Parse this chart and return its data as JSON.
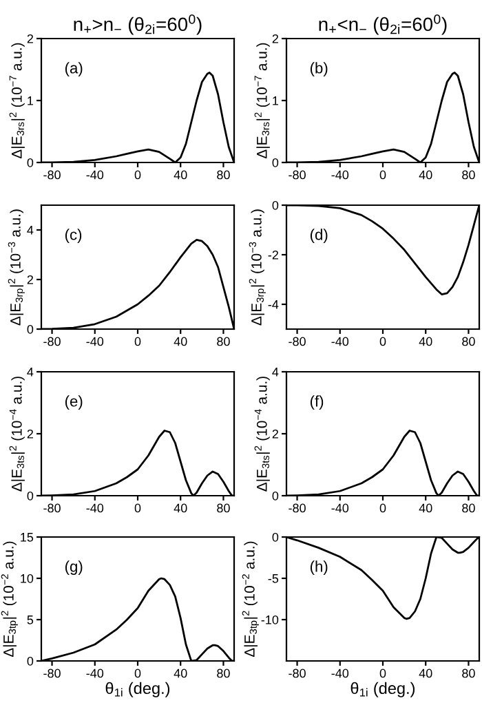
{
  "chart_data": [
    {
      "type": "line",
      "title": "n$_{+}$>n$_{−}$ (θ$_{2i}$=60$^{0}$)",
      "ylabel": "Δ|E$_{3rs}$|$^{2}$ (10$^{−7}$ a.u.)",
      "annotations": [
        "(a)"
      ],
      "x": [
        -90,
        -80,
        -60,
        -40,
        -20,
        -10,
        0,
        10,
        20,
        30,
        35,
        40,
        45,
        50,
        55,
        60,
        65,
        67,
        70,
        75,
        80,
        85,
        90
      ],
      "series": [
        {
          "color": "#000000",
          "values": [
            0,
            0.0,
            0.01,
            0.04,
            0.1,
            0.14,
            0.18,
            0.21,
            0.17,
            0.06,
            0.0,
            0.08,
            0.3,
            0.65,
            1.0,
            1.3,
            1.43,
            1.45,
            1.4,
            1.1,
            0.65,
            0.25,
            0
          ]
        }
      ],
      "xlim": [
        -90,
        90
      ],
      "xticks": [
        -80,
        -40,
        0,
        40,
        80
      ],
      "ylim": [
        0,
        2
      ],
      "yticks": [
        0,
        1,
        2
      ],
      "grid": false,
      "legend": false
    },
    {
      "type": "line",
      "title": "n$_{+}$<n$_{−}$ (θ$_{2i}$=60$^{0}$)",
      "ylabel": "Δ|E$_{3rs}$|$^{2}$ (10$^{−7}$ a.u.)",
      "annotations": [
        "(b)"
      ],
      "x": [
        -90,
        -80,
        -60,
        -40,
        -20,
        -10,
        0,
        10,
        20,
        30,
        35,
        40,
        45,
        50,
        55,
        60,
        65,
        67,
        70,
        75,
        80,
        85,
        90
      ],
      "series": [
        {
          "color": "#000000",
          "values": [
            0,
            0.0,
            0.01,
            0.04,
            0.1,
            0.14,
            0.18,
            0.21,
            0.17,
            0.06,
            0.0,
            0.08,
            0.3,
            0.65,
            1.0,
            1.3,
            1.43,
            1.45,
            1.4,
            1.1,
            0.65,
            0.25,
            0
          ]
        }
      ],
      "xlim": [
        -90,
        90
      ],
      "xticks": [
        -80,
        -40,
        0,
        40,
        80
      ],
      "ylim": [
        0,
        2
      ],
      "yticks": [
        0,
        1,
        2
      ],
      "grid": false,
      "legend": false
    },
    {
      "type": "line",
      "ylabel": "Δ|E$_{3rp}$|$^{2}$ (10$^{−3}$ a.u.)",
      "annotations": [
        "(c)"
      ],
      "x": [
        -90,
        -80,
        -60,
        -40,
        -20,
        -10,
        0,
        10,
        20,
        30,
        40,
        50,
        55,
        60,
        65,
        70,
        75,
        80,
        85,
        90
      ],
      "series": [
        {
          "color": "#000000",
          "values": [
            0,
            0.01,
            0.05,
            0.2,
            0.5,
            0.75,
            1.0,
            1.35,
            1.75,
            2.3,
            2.9,
            3.45,
            3.6,
            3.55,
            3.35,
            3.0,
            2.5,
            1.7,
            0.9,
            0
          ]
        }
      ],
      "xlim": [
        -90,
        90
      ],
      "xticks": [
        -80,
        -40,
        0,
        40,
        80
      ],
      "ylim": [
        0,
        5
      ],
      "yticks": [
        0,
        2,
        4
      ],
      "grid": false,
      "legend": false
    },
    {
      "type": "line",
      "ylabel": "Δ|E$_{3rp}$|$^{2}$ (10$^{−3}$ a.u.)",
      "annotations": [
        "(d)"
      ],
      "x": [
        -90,
        -80,
        -60,
        -40,
        -20,
        -10,
        0,
        10,
        20,
        30,
        40,
        50,
        55,
        60,
        65,
        70,
        75,
        80,
        85,
        90
      ],
      "series": [
        {
          "color": "#000000",
          "values": [
            0,
            0.0,
            -0.03,
            -0.12,
            -0.4,
            -0.65,
            -0.95,
            -1.35,
            -1.8,
            -2.35,
            -2.9,
            -3.4,
            -3.6,
            -3.55,
            -3.3,
            -2.9,
            -2.3,
            -1.6,
            -0.8,
            0
          ]
        }
      ],
      "xlim": [
        -90,
        90
      ],
      "xticks": [
        -80,
        -40,
        0,
        40,
        80
      ],
      "ylim": [
        -5,
        0
      ],
      "yticks": [
        -4,
        -2,
        0
      ],
      "grid": false,
      "legend": false
    },
    {
      "type": "line",
      "ylabel": "Δ|E$_{3ts}$|$^{2}$ (10$^{−4}$ a.u.)",
      "annotations": [
        "(e)"
      ],
      "x": [
        -90,
        -80,
        -60,
        -40,
        -20,
        -10,
        0,
        10,
        20,
        25,
        30,
        35,
        40,
        45,
        50,
        52,
        55,
        60,
        65,
        70,
        75,
        80,
        85,
        88,
        90
      ],
      "series": [
        {
          "color": "#000000",
          "values": [
            0,
            0.01,
            0.04,
            0.15,
            0.4,
            0.6,
            0.85,
            1.3,
            1.9,
            2.1,
            2.05,
            1.7,
            1.1,
            0.5,
            0.08,
            0,
            0.1,
            0.4,
            0.65,
            0.78,
            0.7,
            0.45,
            0.15,
            0,
            0
          ]
        }
      ],
      "xlim": [
        -90,
        90
      ],
      "xticks": [
        -80,
        -40,
        0,
        40,
        80
      ],
      "ylim": [
        0,
        4
      ],
      "yticks": [
        0,
        2,
        4
      ],
      "grid": false,
      "legend": false
    },
    {
      "type": "line",
      "ylabel": "Δ|E$_{3ts}$|$^{2}$ (10$^{−4}$ a.u.)",
      "annotations": [
        "(f)"
      ],
      "x": [
        -90,
        -80,
        -60,
        -40,
        -20,
        -10,
        0,
        10,
        20,
        25,
        30,
        35,
        40,
        45,
        50,
        52,
        55,
        60,
        65,
        70,
        75,
        80,
        85,
        88,
        90
      ],
      "series": [
        {
          "color": "#000000",
          "values": [
            0,
            0.01,
            0.04,
            0.15,
            0.4,
            0.6,
            0.85,
            1.3,
            1.9,
            2.1,
            2.05,
            1.7,
            1.1,
            0.5,
            0.08,
            0,
            0.1,
            0.4,
            0.65,
            0.78,
            0.7,
            0.45,
            0.15,
            0,
            0
          ]
        }
      ],
      "xlim": [
        -90,
        90
      ],
      "xticks": [
        -80,
        -40,
        0,
        40,
        80
      ],
      "ylim": [
        0,
        4
      ],
      "yticks": [
        0,
        2,
        4
      ],
      "grid": false,
      "legend": false
    },
    {
      "type": "line",
      "xlabel": "θ$_{1i}$ (deg.)",
      "ylabel": "Δ|E$_{3tp}$|$^{2}$ (10$^{−2}$ a.u.)",
      "annotations": [
        "(g)"
      ],
      "x": [
        -90,
        -80,
        -60,
        -40,
        -20,
        -10,
        0,
        10,
        20,
        22,
        25,
        30,
        35,
        40,
        45,
        50,
        55,
        60,
        65,
        70,
        72,
        75,
        80,
        85,
        88,
        90
      ],
      "series": [
        {
          "color": "#000000",
          "values": [
            0,
            0.3,
            1.0,
            2.0,
            3.8,
            5.0,
            6.4,
            8.5,
            9.9,
            10,
            9.9,
            9.2,
            7.8,
            5.2,
            2.0,
            0,
            0.1,
            0.8,
            1.5,
            1.9,
            1.9,
            1.8,
            1.2,
            0.4,
            0,
            0
          ]
        }
      ],
      "xlim": [
        -90,
        90
      ],
      "xticks": [
        -80,
        -40,
        0,
        40,
        80
      ],
      "ylim": [
        0,
        15
      ],
      "yticks": [
        0,
        5,
        10,
        15
      ],
      "grid": false,
      "legend": false
    },
    {
      "type": "line",
      "xlabel": "θ$_{1i}$ (deg.)",
      "ylabel": "Δ|E$_{3tp}$|$^{2}$ (10$^{−2}$ a.u.)",
      "annotations": [
        "(h)"
      ],
      "x": [
        -90,
        -80,
        -60,
        -40,
        -20,
        -10,
        0,
        10,
        20,
        22,
        25,
        30,
        35,
        40,
        45,
        50,
        55,
        60,
        65,
        70,
        72,
        75,
        80,
        85,
        88,
        90
      ],
      "series": [
        {
          "color": "#000000",
          "values": [
            0,
            -0.4,
            -1.3,
            -2.4,
            -4.0,
            -5.2,
            -6.5,
            -8.5,
            -9.8,
            -9.9,
            -9.8,
            -9.0,
            -7.5,
            -5.0,
            -2.0,
            0,
            -0.1,
            -0.8,
            -1.5,
            -1.9,
            -1.9,
            -1.8,
            -1.3,
            -0.6,
            -0.2,
            0
          ]
        }
      ],
      "xlim": [
        -90,
        90
      ],
      "xticks": [
        -80,
        -40,
        0,
        40,
        80
      ],
      "ylim": [
        -15,
        0
      ],
      "yticks": [
        -10,
        -5,
        0
      ],
      "grid": false,
      "legend": false
    }
  ]
}
